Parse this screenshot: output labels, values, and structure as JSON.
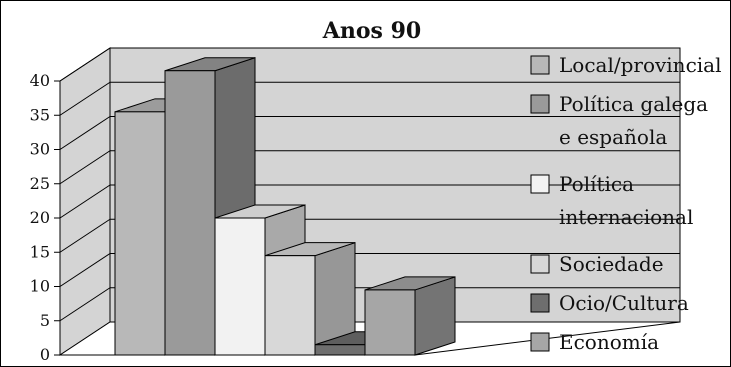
{
  "chart_data": {
    "type": "bar",
    "title": "Anos 90",
    "xlabel": "",
    "ylabel": "",
    "ylim": [
      0,
      40
    ],
    "yticks": [
      0,
      5,
      10,
      15,
      20,
      25,
      30,
      35,
      40
    ],
    "grid": true,
    "legend_position": "right",
    "categories": [
      "Local/provincial",
      "Política galega e española",
      "Política internacional",
      "Sociedade",
      "Ocio/Cultura",
      "Economía"
    ],
    "values": [
      35.5,
      41.5,
      20,
      14.5,
      1.5,
      9.5
    ],
    "legend": [
      {
        "lines": [
          "Local/provincial"
        ]
      },
      {
        "lines": [
          "Política galega",
          "e española"
        ]
      },
      {
        "lines": [
          "Política",
          "internacional"
        ]
      },
      {
        "lines": [
          "Sociedade"
        ]
      },
      {
        "lines": [
          "Ocio/Cultura"
        ]
      },
      {
        "lines": [
          "Economía"
        ]
      }
    ],
    "colors": {
      "bars": [
        "#b8b8b8",
        "#9a9a9a",
        "#f2f2f2",
        "#d8d8d8",
        "#6e6e6e",
        "#a6a6a6"
      ],
      "wall": "#d4d4d4",
      "floor": "#ffffff",
      "frame": "#000000"
    }
  }
}
